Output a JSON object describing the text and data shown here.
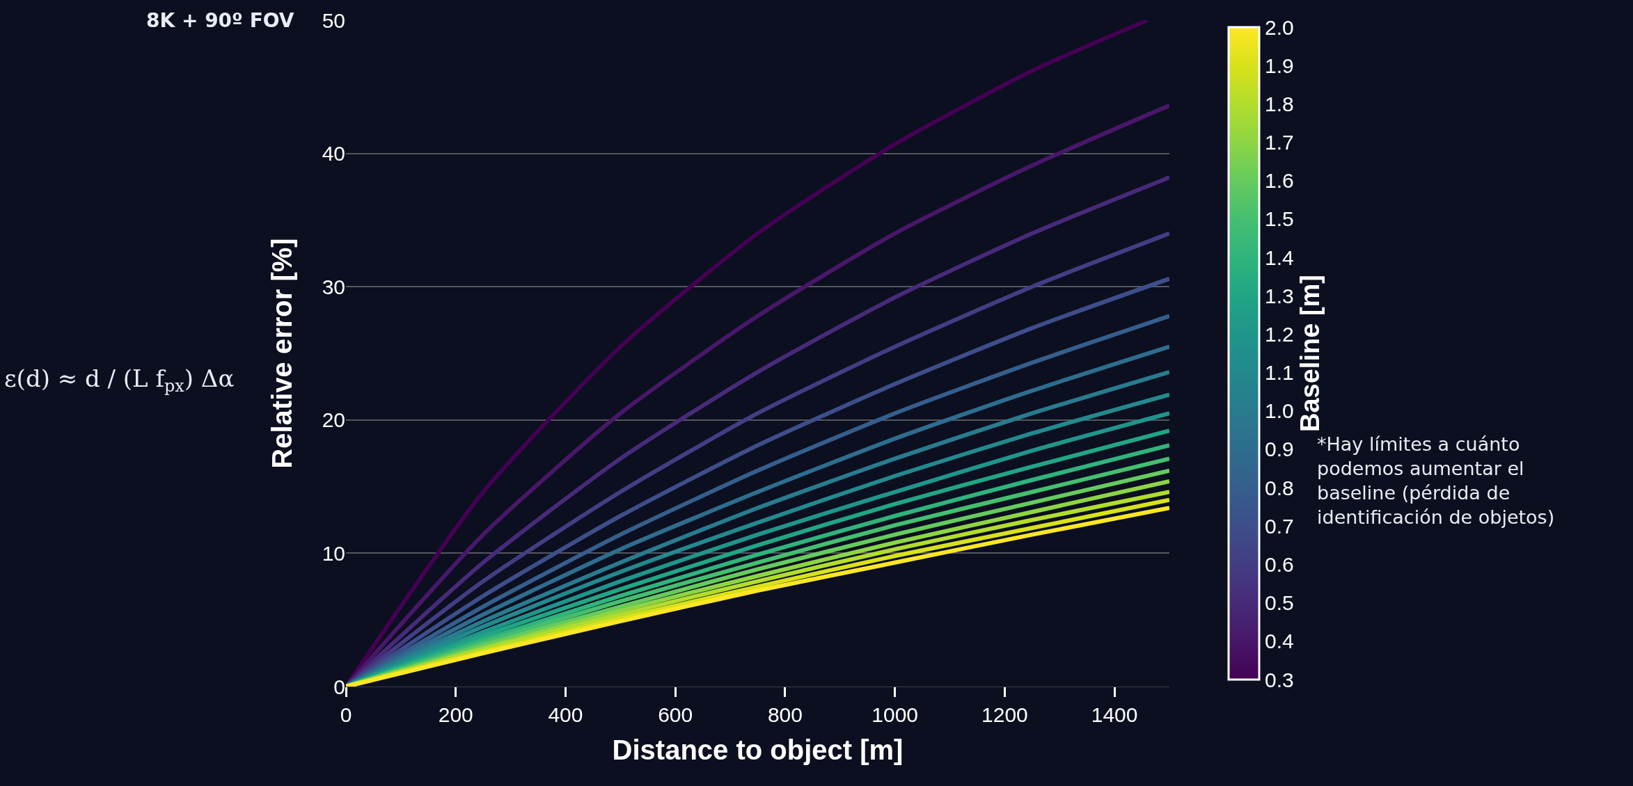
{
  "chart_data": {
    "type": "line",
    "title": "8K + 90º FOV",
    "xlabel": "Distance to object [m]",
    "ylabel": "Relative error [%]",
    "clabel": "Baseline [m]",
    "annotations": [
      "ε(d) ≈ d / (L f$_{px}$) Δα",
      "*Hay límites a cuánto podemos aumentar el baseline (pérdida de identificación de objetos)"
    ],
    "x": [
      0,
      250,
      500,
      750,
      1000,
      1250,
      1500
    ],
    "series": [
      {
        "color": "#440154",
        "x": [
          0,
          250,
          500,
          750,
          1000,
          1250,
          1460
        ],
        "values": [
          0,
          14.6,
          25.5,
          34.0,
          40.7,
          46.2,
          50.0
        ]
      },
      {
        "color": "#481769",
        "values": [
          0,
          11.4,
          20.5,
          27.8,
          34.0,
          39.1,
          43.6
        ]
      },
      {
        "color": "#472a7a",
        "values": [
          0,
          9.3,
          17.1,
          23.6,
          29.2,
          34.0,
          38.2
        ]
      },
      {
        "color": "#433d84",
        "values": [
          0,
          7.9,
          14.6,
          20.5,
          25.5,
          30.0,
          34.0
        ]
      },
      {
        "color": "#3d4e8a",
        "values": [
          0,
          6.8,
          12.8,
          18.1,
          22.7,
          26.9,
          30.6
        ]
      },
      {
        "color": "#355e8d",
        "values": [
          0,
          6.0,
          11.4,
          16.2,
          20.5,
          24.3,
          27.8
        ]
      },
      {
        "color": "#2e6d8e",
        "values": [
          0,
          5.4,
          10.3,
          14.6,
          18.6,
          22.2,
          25.5
        ]
      },
      {
        "color": "#297b8e",
        "values": [
          0,
          4.9,
          9.3,
          13.4,
          17.1,
          20.5,
          23.6
        ]
      },
      {
        "color": "#23898e",
        "values": [
          0,
          4.5,
          8.6,
          12.3,
          15.8,
          19.0,
          21.9
        ]
      },
      {
        "color": "#1f958b",
        "values": [
          0,
          4.1,
          7.9,
          11.4,
          14.6,
          17.7,
          20.5
        ]
      },
      {
        "color": "#21a585",
        "values": [
          0,
          3.8,
          7.3,
          10.6,
          13.7,
          16.5,
          19.2
        ]
      },
      {
        "color": "#2fb47c",
        "values": [
          0,
          3.5,
          6.8,
          9.9,
          12.8,
          15.5,
          18.1
        ]
      },
      {
        "color": "#44bf70",
        "values": [
          0,
          3.3,
          6.4,
          9.3,
          12.1,
          14.6,
          17.1
        ]
      },
      {
        "color": "#65cb5e",
        "values": [
          0,
          3.1,
          6.0,
          8.8,
          11.4,
          13.8,
          16.2
        ]
      },
      {
        "color": "#8dd544",
        "values": [
          0,
          2.9,
          5.7,
          8.3,
          10.8,
          13.1,
          15.4
        ]
      },
      {
        "color": "#b2dd2d",
        "values": [
          0,
          2.8,
          5.4,
          7.9,
          10.3,
          12.5,
          14.6
        ]
      },
      {
        "color": "#d8e219",
        "values": [
          0,
          2.6,
          5.1,
          7.5,
          9.8,
          11.9,
          14.0
        ]
      },
      {
        "color": "#fde725",
        "values": [
          0,
          2.5,
          4.9,
          7.2,
          9.3,
          11.4,
          13.4
        ]
      }
    ],
    "xlim": [
      0,
      1500
    ],
    "xticks": [
      0,
      200,
      400,
      600,
      800,
      1000,
      1200,
      1400
    ],
    "ylim": [
      0,
      50
    ],
    "yticks": [
      0,
      10,
      20,
      30,
      40,
      50
    ],
    "grid": "y",
    "clim": [
      0.3,
      2.0
    ],
    "cticks": [
      0.3,
      0.4,
      0.5,
      0.6,
      0.7,
      0.8,
      0.9,
      {
        "value": 1,
        "label": "1.0"
      },
      1.1,
      1.2,
      1.3,
      1.4,
      1.5,
      1.6,
      1.7,
      1.8,
      1.9,
      {
        "value": 2,
        "label": "2.0"
      }
    ]
  }
}
